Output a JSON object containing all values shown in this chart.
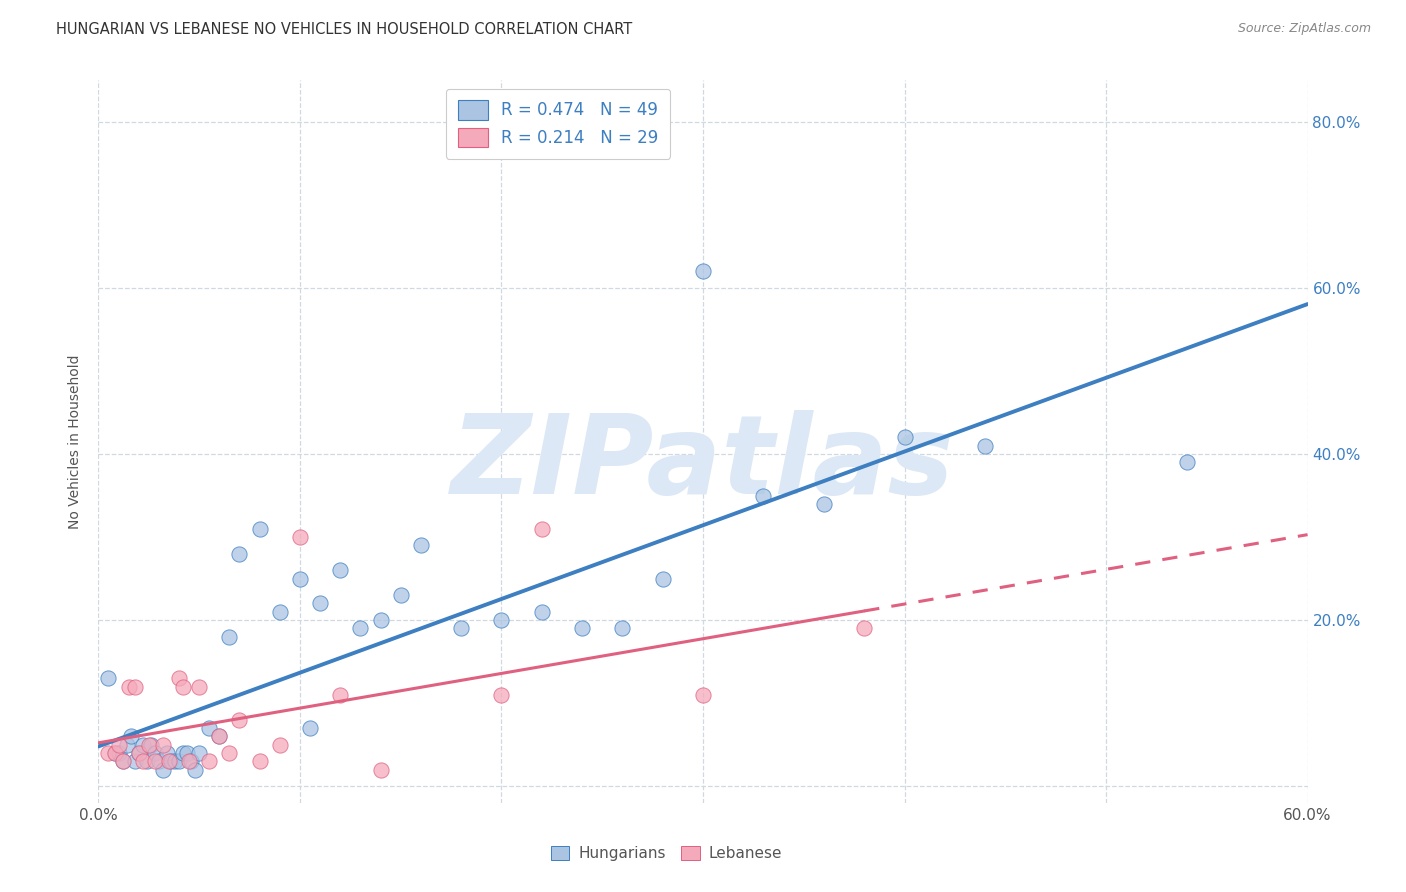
{
  "title": "HUNGARIAN VS LEBANESE NO VEHICLES IN HOUSEHOLD CORRELATION CHART",
  "source": "Source: ZipAtlas.com",
  "ylabel": "No Vehicles in Household",
  "xlim": [
    0.0,
    0.6
  ],
  "ylim": [
    -0.02,
    0.85
  ],
  "hungarian_color": "#aac4e2",
  "lebanese_color": "#f5aabb",
  "hungarian_line_color": "#3d7fc1",
  "lebanese_line_color": "#e06080",
  "legend_text_color": "#3d7fc1",
  "right_tick_color": "#3d7fc1",
  "hungarian_x": [
    0.005,
    0.008,
    0.01,
    0.012,
    0.014,
    0.016,
    0.018,
    0.02,
    0.022,
    0.024,
    0.026,
    0.028,
    0.03,
    0.032,
    0.034,
    0.036,
    0.038,
    0.04,
    0.042,
    0.044,
    0.046,
    0.048,
    0.05,
    0.055,
    0.06,
    0.065,
    0.07,
    0.08,
    0.09,
    0.1,
    0.105,
    0.11,
    0.12,
    0.13,
    0.14,
    0.15,
    0.16,
    0.18,
    0.2,
    0.22,
    0.24,
    0.26,
    0.28,
    0.3,
    0.33,
    0.36,
    0.4,
    0.44,
    0.54
  ],
  "hungarian_y": [
    0.13,
    0.04,
    0.04,
    0.03,
    0.05,
    0.06,
    0.03,
    0.04,
    0.05,
    0.03,
    0.05,
    0.04,
    0.03,
    0.02,
    0.04,
    0.03,
    0.03,
    0.03,
    0.04,
    0.04,
    0.03,
    0.02,
    0.04,
    0.07,
    0.06,
    0.18,
    0.28,
    0.31,
    0.21,
    0.25,
    0.07,
    0.22,
    0.26,
    0.19,
    0.2,
    0.23,
    0.29,
    0.19,
    0.2,
    0.21,
    0.19,
    0.19,
    0.25,
    0.62,
    0.35,
    0.34,
    0.42,
    0.41,
    0.39
  ],
  "lebanese_x": [
    0.005,
    0.008,
    0.01,
    0.012,
    0.015,
    0.018,
    0.02,
    0.022,
    0.025,
    0.028,
    0.032,
    0.035,
    0.04,
    0.042,
    0.045,
    0.05,
    0.055,
    0.06,
    0.065,
    0.07,
    0.08,
    0.09,
    0.1,
    0.12,
    0.14,
    0.2,
    0.22,
    0.3,
    0.38
  ],
  "lebanese_y": [
    0.04,
    0.04,
    0.05,
    0.03,
    0.12,
    0.12,
    0.04,
    0.03,
    0.05,
    0.03,
    0.05,
    0.03,
    0.13,
    0.12,
    0.03,
    0.12,
    0.03,
    0.06,
    0.04,
    0.08,
    0.03,
    0.05,
    0.3,
    0.11,
    0.02,
    0.11,
    0.31,
    0.11,
    0.19
  ],
  "background_color": "#ffffff",
  "grid_color": "#d0d8e0",
  "watermark_text": "ZIPatlas",
  "watermark_color": "#dce8f5",
  "watermark_fontsize": 80,
  "title_fontsize": 10.5,
  "source_fontsize": 9,
  "tick_fontsize": 11,
  "ylabel_fontsize": 10
}
